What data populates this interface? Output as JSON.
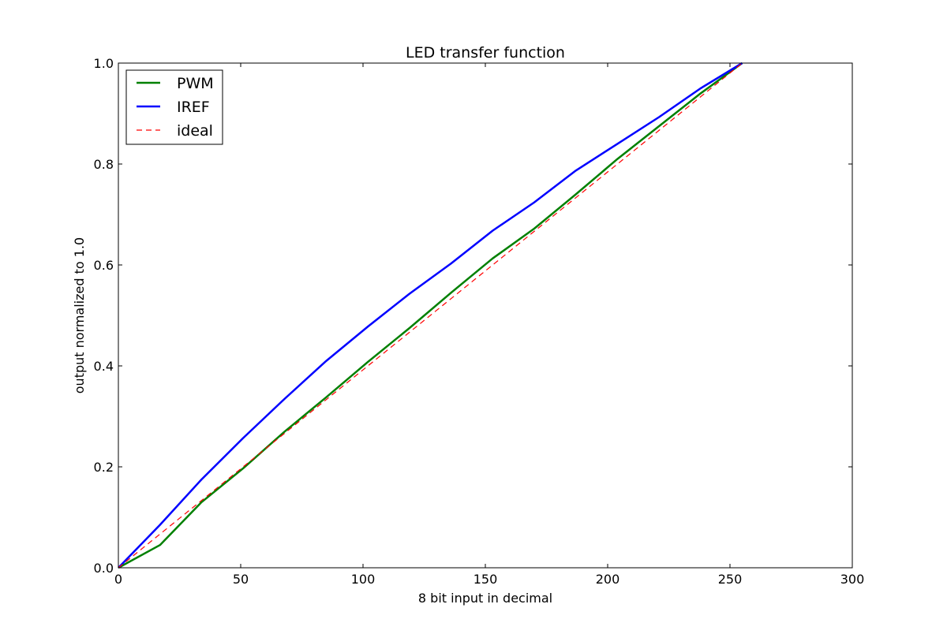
{
  "chart_data": {
    "type": "line",
    "title": "LED transfer function",
    "xlabel": "8 bit input in decimal",
    "ylabel": "output normalized to 1.0",
    "xlim": [
      0,
      300
    ],
    "ylim": [
      0,
      1.0
    ],
    "xticks": [
      0,
      50,
      100,
      150,
      200,
      250,
      300
    ],
    "xtick_labels": [
      "0",
      "50",
      "100",
      "150",
      "200",
      "250",
      "300"
    ],
    "yticks": [
      0,
      0.2,
      0.4,
      0.6,
      0.8,
      1.0
    ],
    "ytick_labels": [
      "0.0",
      "0.2",
      "0.4",
      "0.6",
      "0.8",
      "1.0"
    ],
    "grid": false,
    "legend_position": "top-left",
    "series": [
      {
        "name": "PWM",
        "color": "#008000",
        "style": "solid",
        "x": [
          0,
          17,
          34,
          51,
          68,
          85,
          102,
          119,
          136,
          153,
          170,
          187,
          204,
          221,
          238,
          255
        ],
        "y": [
          0,
          0.045,
          0.13,
          0.197,
          0.27,
          0.338,
          0.408,
          0.475,
          0.545,
          0.613,
          0.672,
          0.74,
          0.81,
          0.875,
          0.94,
          1.0
        ]
      },
      {
        "name": "IREF",
        "color": "#0000ff",
        "style": "solid",
        "x": [
          0,
          17,
          34,
          51,
          68,
          85,
          102,
          119,
          136,
          153,
          170,
          187,
          204,
          221,
          238,
          255
        ],
        "y": [
          0,
          0.085,
          0.175,
          0.257,
          0.335,
          0.41,
          0.478,
          0.543,
          0.603,
          0.668,
          0.724,
          0.787,
          0.84,
          0.893,
          0.95,
          1.0
        ]
      },
      {
        "name": "ideal",
        "color": "#ff0000",
        "style": "dashed",
        "x": [
          0,
          255
        ],
        "y": [
          0,
          1.0
        ]
      }
    ]
  }
}
